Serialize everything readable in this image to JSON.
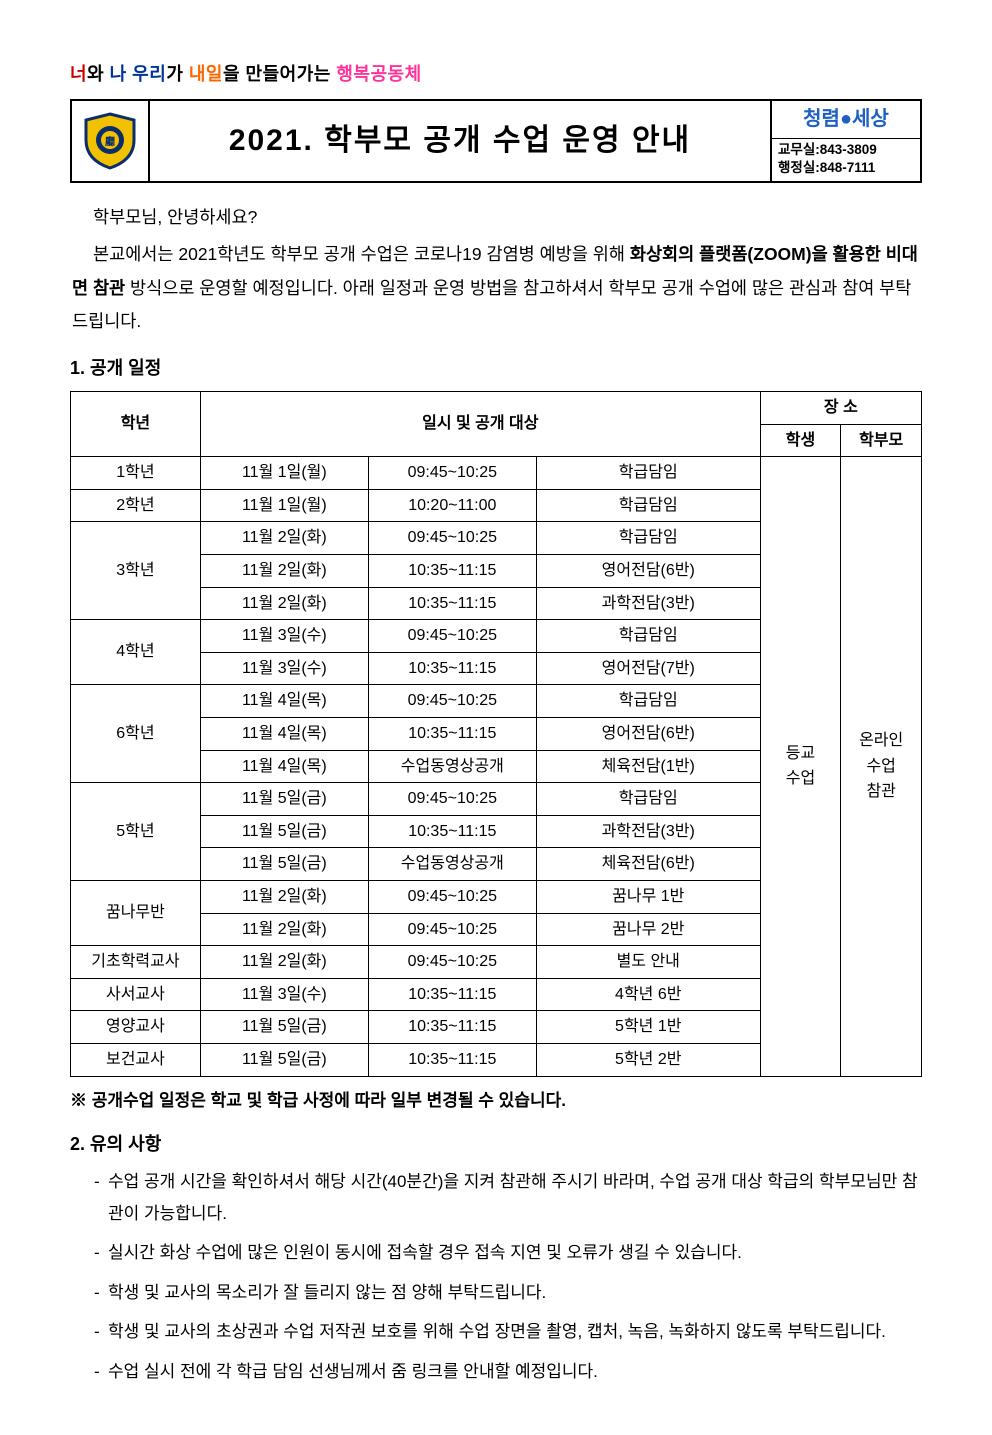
{
  "tagline": {
    "p1": "너",
    "p2": "와 ",
    "p3": "나 우리",
    "p4": "가 ",
    "p5": "내일",
    "p6": "을 만들어가는 ",
    "p7": "행복공동체"
  },
  "header": {
    "title": "2021. 학부모 공개 수업 운영 안내",
    "brand": "청렴●세상",
    "contact1": "교무실:843-3809",
    "contact2": "행정실:848-7111"
  },
  "intro": {
    "greeting": "학부모님, 안녕하세요?",
    "line1a": "본교에서는 2021학년도 학부모 공개 수업은 코로나19 감염병 예방을 위해 ",
    "line1b": "화상회의 플랫폼(ZOOM)을 활용한 비대면 참관",
    "line1c": " 방식으로 운영할 예정입니다. 아래 일정과 운영 방법을 참고하셔서 학부모 공개 수업에 많은 관심과 참여 부탁드립니다."
  },
  "section1": "1. 공개 일정",
  "table": {
    "head": {
      "grade": "학년",
      "datetime": "일시 및 공개 대상",
      "place": "장 소",
      "student": "학생",
      "parent": "학부모"
    },
    "studentLoc": "등교\n수업",
    "parentLoc": "온라인\n수업\n참관",
    "rows": [
      {
        "grade": "1학년",
        "span": 1,
        "date": "11월 1일(월)",
        "time": "09:45~10:25",
        "subj": "학급담임"
      },
      {
        "grade": "2학년",
        "span": 1,
        "date": "11월 1일(월)",
        "time": "10:20~11:00",
        "subj": "학급담임"
      },
      {
        "grade": "3학년",
        "span": 3,
        "date": "11월 2일(화)",
        "time": "09:45~10:25",
        "subj": "학급담임"
      },
      {
        "date": "11월 2일(화)",
        "time": "10:35~11:15",
        "subj": "영어전담(6반)"
      },
      {
        "date": "11월 2일(화)",
        "time": "10:35~11:15",
        "subj": "과학전담(3반)"
      },
      {
        "grade": "4학년",
        "span": 2,
        "date": "11월 3일(수)",
        "time": "09:45~10:25",
        "subj": "학급담임"
      },
      {
        "date": "11월 3일(수)",
        "time": "10:35~11:15",
        "subj": "영어전담(7반)"
      },
      {
        "grade": "6학년",
        "span": 3,
        "date": "11월 4일(목)",
        "time": "09:45~10:25",
        "subj": "학급담임"
      },
      {
        "date": "11월 4일(목)",
        "time": "10:35~11:15",
        "subj": "영어전담(6반)"
      },
      {
        "date": "11월 4일(목)",
        "time": "수업동영상공개",
        "subj": "체육전담(1반)"
      },
      {
        "grade": "5학년",
        "span": 3,
        "date": "11월 5일(금)",
        "time": "09:45~10:25",
        "subj": "학급담임"
      },
      {
        "date": "11월 5일(금)",
        "time": "10:35~11:15",
        "subj": "과학전담(3반)"
      },
      {
        "date": "11월 5일(금)",
        "time": "수업동영상공개",
        "subj": "체육전담(6반)"
      },
      {
        "grade": "꿈나무반",
        "span": 2,
        "date": "11월 2일(화)",
        "time": "09:45~10:25",
        "subj": "꿈나무 1반"
      },
      {
        "date": "11월 2일(화)",
        "time": "09:45~10:25",
        "subj": "꿈나무 2반"
      },
      {
        "grade": "기초학력교사",
        "span": 1,
        "date": "11월 2일(화)",
        "time": "09:45~10:25",
        "subj": "별도 안내"
      },
      {
        "grade": "사서교사",
        "span": 1,
        "date": "11월 3일(수)",
        "time": "10:35~11:15",
        "subj": "4학년 6반"
      },
      {
        "grade": "영양교사",
        "span": 1,
        "date": "11월 5일(금)",
        "time": "10:35~11:15",
        "subj": "5학년 1반"
      },
      {
        "grade": "보건교사",
        "span": 1,
        "date": "11월 5일(금)",
        "time": "10:35~11:15",
        "subj": "5학년 2반"
      }
    ]
  },
  "note": "※ 공개수업 일정은 학교 및 학급 사정에 따라 일부 변경될 수 있습니다.",
  "section2": "2. 유의 사항",
  "bullets": [
    "수업 공개 시간을 확인하셔서 해당 시간(40분간)을 지켜 참관해 주시기 바라며, 수업 공개 대상 학급의 학부모님만 참관이 가능합니다.",
    "실시간 화상 수업에 많은 인원이 동시에 접속할 경우 접속 지연 및 오류가 생길 수 있습니다.",
    "학생 및 교사의 목소리가 잘 들리지 않는 점 양해 부탁드립니다.",
    "학생 및 교사의 초상권과 수업 저작권 보호를 위해 수업 장면을 촬영, 캡처, 녹음, 녹화하지 않도록 부탁드립니다.",
    "수업 실시 전에 각 학급 담임 선생님께서 줌 링크를 안내할 예정입니다."
  ],
  "colors": {
    "border": "#000000",
    "red": "#cc0000",
    "blue": "#003399",
    "orange": "#ff6600",
    "pink": "#ff3399",
    "brandBlue": "#1e5fc4"
  }
}
